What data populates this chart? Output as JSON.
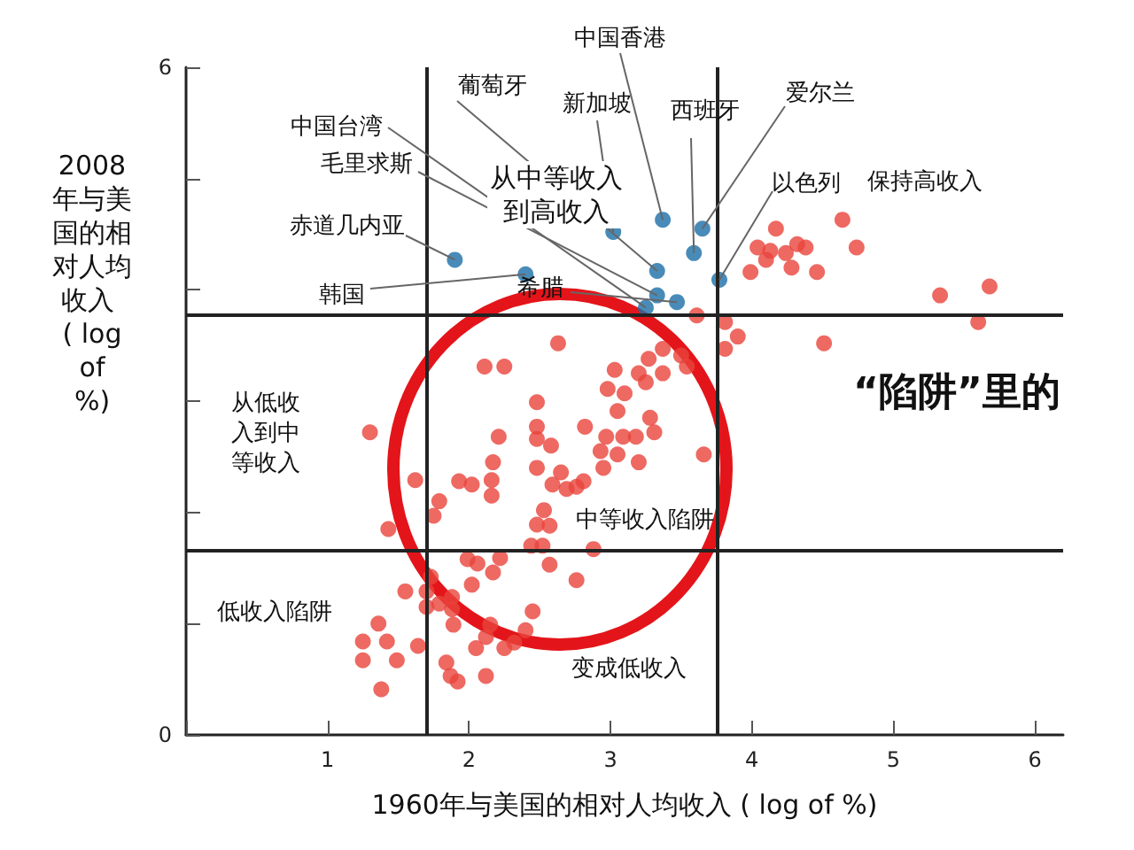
{
  "chart_data": {
    "type": "scatter",
    "xlabel": "1960年与美国的相对人均收入 ( log of %)",
    "ylabel": "2008年与美国的相对人均收入 ( log of %)",
    "xlim": [
      0,
      6.2
    ],
    "xticks": [
      {
        "value": 0,
        "label": null
      },
      1,
      2,
      3,
      4,
      5,
      6
    ],
    "ylim": [
      0,
      6
    ],
    "yticks": [
      0,
      {
        "value": 1,
        "label": null
      },
      {
        "value": 2,
        "label": null
      },
      {
        "value": 3,
        "label": null
      },
      {
        "value": 4,
        "label": null
      },
      {
        "value": 5,
        "label": null
      },
      6
    ],
    "grid": false,
    "marker": "circle",
    "tick_labels": "xy",
    "series": [
      {
        "color": "#e8433b",
        "x": [
          4.17,
          4.04,
          4.13,
          4.32,
          4.38,
          4.24,
          4.1,
          4.28,
          3.99,
          4.46,
          4.64,
          4.74,
          5.33,
          5.68,
          5.6,
          4.51,
          3.61,
          3.81,
          3.9,
          3.81,
          2.63,
          3.37,
          3.27,
          3.5,
          3.54,
          3.03,
          3.2,
          3.37,
          3.25,
          2.98,
          3.1,
          2.48,
          3.05,
          3.28,
          2.82,
          2.48,
          2.97,
          3.09,
          3.18,
          3.31,
          2.48,
          2.58,
          2.93,
          3.05,
          3.2,
          3.66,
          2.48,
          2.95,
          2.65,
          2.59,
          2.69,
          2.76,
          2.81,
          2.53,
          2.48,
          2.57,
          2.44,
          2.52,
          2.88,
          2.57,
          2.76,
          2.11,
          2.25,
          1.3,
          2.21,
          2.17,
          2.16,
          2.16,
          1.93,
          2.02,
          1.62,
          1.79,
          1.75,
          1.43,
          1.99,
          2.06,
          2.22,
          2.17,
          2.02,
          1.73,
          1.55,
          1.7,
          1.7,
          1.79,
          1.88,
          1.88,
          1.89,
          2.15,
          2.12,
          2.05,
          2.4,
          2.32,
          2.25,
          2.45,
          1.36,
          1.25,
          1.42,
          1.64,
          1.25,
          1.49,
          1.84,
          1.38,
          1.87,
          1.92,
          2.12
        ],
        "values": [
          4.55,
          4.38,
          4.35,
          4.41,
          4.38,
          4.33,
          4.27,
          4.2,
          4.16,
          4.16,
          4.63,
          4.38,
          3.95,
          4.03,
          3.71,
          3.52,
          3.77,
          3.71,
          3.58,
          3.47,
          3.52,
          3.47,
          3.38,
          3.41,
          3.31,
          3.28,
          3.25,
          3.25,
          3.17,
          3.11,
          3.07,
          2.99,
          2.91,
          2.85,
          2.77,
          2.77,
          2.68,
          2.68,
          2.68,
          2.72,
          2.66,
          2.6,
          2.55,
          2.52,
          2.45,
          2.52,
          2.4,
          2.4,
          2.36,
          2.25,
          2.21,
          2.23,
          2.28,
          2.02,
          1.89,
          1.88,
          1.7,
          1.7,
          1.67,
          1.53,
          1.39,
          3.31,
          3.31,
          2.72,
          2.68,
          2.45,
          2.29,
          2.15,
          2.28,
          2.25,
          2.29,
          2.1,
          1.97,
          1.85,
          1.58,
          1.54,
          1.59,
          1.46,
          1.35,
          1.42,
          1.29,
          1.29,
          1.15,
          1.18,
          1.24,
          1.13,
          0.99,
          0.99,
          0.88,
          0.78,
          0.94,
          0.83,
          0.78,
          1.11,
          1.0,
          0.84,
          0.84,
          0.8,
          0.67,
          0.67,
          0.65,
          0.41,
          0.53,
          0.48,
          0.53
        ]
      },
      {
        "color": "#1b6ea6",
        "x": [
          1.9,
          2.4,
          3.02,
          3.37,
          3.65,
          3.77,
          3.59,
          3.33,
          3.33,
          3.25,
          3.47
        ],
        "values": [
          4.27,
          4.14,
          4.52,
          4.63,
          4.55,
          4.09,
          4.33,
          4.17,
          3.95,
          3.84,
          3.89
        ]
      }
    ],
    "ref_lines": [
      {
        "axis": "x",
        "value": 1.7,
        "color": "#222222"
      },
      {
        "axis": "x",
        "value": 3.75,
        "color": "#222222"
      },
      {
        "axis": "y",
        "value": 3.77,
        "color": "#222222"
      },
      {
        "axis": "y",
        "value": 1.66,
        "color": "#222222"
      }
    ],
    "annotations": [
      {
        "text": "赤道几内亚",
        "x": 1.9,
        "y": 4.27
      },
      {
        "text": "韩国",
        "x": 2.4,
        "y": 4.14
      },
      {
        "text": "新加坡",
        "x": 3.02,
        "y": 4.52
      },
      {
        "text": "中国香港",
        "x": 3.37,
        "y": 4.63
      },
      {
        "text": "爱尔兰",
        "x": 3.65,
        "y": 4.55
      },
      {
        "text": "以色列",
        "x": 3.77,
        "y": 4.09
      },
      {
        "text": "西班牙",
        "x": 3.59,
        "y": 4.33
      },
      {
        "text": "葡萄牙",
        "x": 3.33,
        "y": 4.17
      },
      {
        "text": "毛里求斯",
        "x": 3.33,
        "y": 3.95
      },
      {
        "text": "中国台湾",
        "x": 3.25,
        "y": 3.84
      },
      {
        "text": "希腊",
        "x": 3.47,
        "y": 3.89
      },
      "从中等收入到高收入",
      "保持高收入",
      "从低收入到中等收入",
      "中等收入陷阱",
      "低收入陷阱",
      "变成低收入",
      "“陷阱”里的"
    ]
  }
}
